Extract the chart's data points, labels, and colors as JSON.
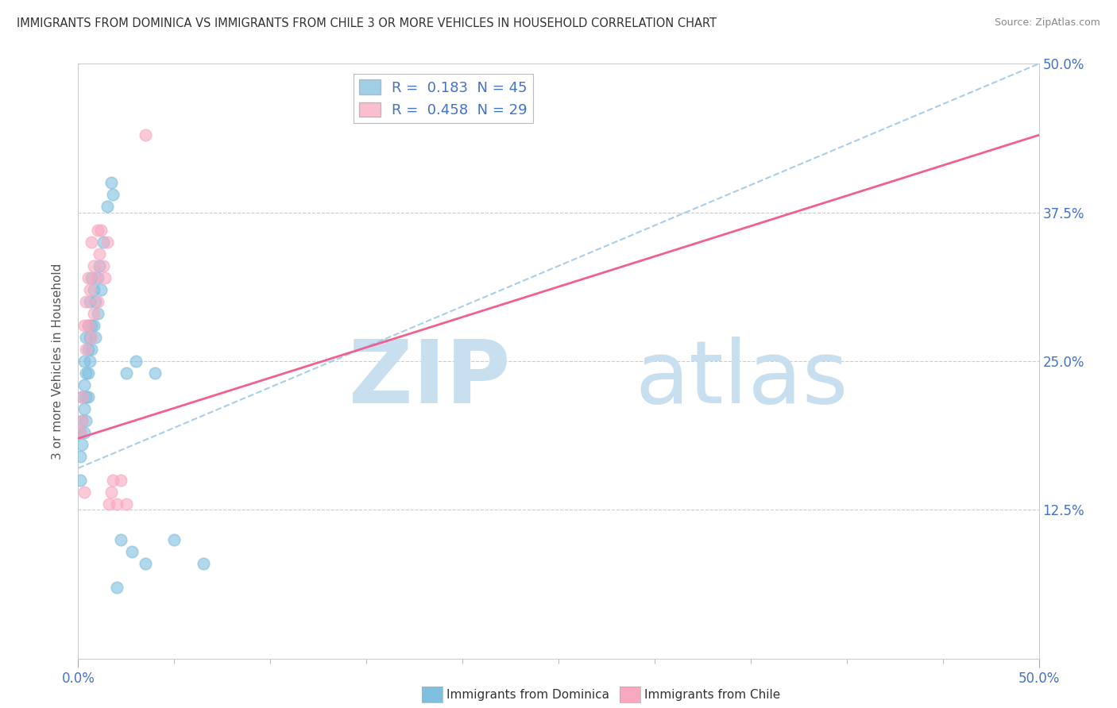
{
  "title": "IMMIGRANTS FROM DOMINICA VS IMMIGRANTS FROM CHILE 3 OR MORE VEHICLES IN HOUSEHOLD CORRELATION CHART",
  "source": "Source: ZipAtlas.com",
  "ylabel_label": "3 or more Vehicles in Household",
  "ytick_values": [
    0.125,
    0.25,
    0.375,
    0.5
  ],
  "ytick_labels": [
    "12.5%",
    "25.0%",
    "37.5%",
    "50.0%"
  ],
  "xtick_minor_values": [
    0.0,
    0.05,
    0.1,
    0.15,
    0.2,
    0.25,
    0.3,
    0.35,
    0.4,
    0.45,
    0.5
  ],
  "dominica_R": 0.183,
  "dominica_N": 45,
  "chile_R": 0.458,
  "chile_N": 29,
  "dominica_color": "#7fbfdf",
  "chile_color": "#f9a8c0",
  "dominica_line_color": "#7fbfdf",
  "chile_line_color": "#f06090",
  "watermark_zip": "ZIP",
  "watermark_atlas": "atlas",
  "watermark_color": "#c8dff0",
  "legend_label_dominica": "Immigrants from Dominica",
  "legend_label_chile": "Immigrants from Chile",
  "dominica_x": [
    0.001,
    0.001,
    0.001,
    0.002,
    0.002,
    0.002,
    0.003,
    0.003,
    0.003,
    0.003,
    0.004,
    0.004,
    0.004,
    0.004,
    0.005,
    0.005,
    0.005,
    0.005,
    0.006,
    0.006,
    0.006,
    0.007,
    0.007,
    0.007,
    0.008,
    0.008,
    0.009,
    0.009,
    0.01,
    0.01,
    0.011,
    0.012,
    0.013,
    0.015,
    0.017,
    0.018,
    0.02,
    0.022,
    0.025,
    0.028,
    0.03,
    0.035,
    0.04,
    0.05,
    0.065
  ],
  "dominica_y": [
    0.19,
    0.17,
    0.15,
    0.22,
    0.2,
    0.18,
    0.25,
    0.23,
    0.21,
    0.19,
    0.27,
    0.24,
    0.22,
    0.2,
    0.28,
    0.26,
    0.24,
    0.22,
    0.3,
    0.27,
    0.25,
    0.32,
    0.28,
    0.26,
    0.31,
    0.28,
    0.3,
    0.27,
    0.32,
    0.29,
    0.33,
    0.31,
    0.35,
    0.38,
    0.4,
    0.39,
    0.06,
    0.1,
    0.24,
    0.09,
    0.25,
    0.08,
    0.24,
    0.1,
    0.08
  ],
  "chile_x": [
    0.001,
    0.002,
    0.002,
    0.003,
    0.003,
    0.004,
    0.004,
    0.005,
    0.005,
    0.006,
    0.007,
    0.007,
    0.008,
    0.008,
    0.009,
    0.01,
    0.01,
    0.011,
    0.012,
    0.013,
    0.014,
    0.015,
    0.016,
    0.017,
    0.018,
    0.02,
    0.022,
    0.025,
    0.035
  ],
  "chile_y": [
    0.19,
    0.22,
    0.2,
    0.28,
    0.14,
    0.3,
    0.26,
    0.32,
    0.28,
    0.31,
    0.35,
    0.27,
    0.33,
    0.29,
    0.32,
    0.36,
    0.3,
    0.34,
    0.36,
    0.33,
    0.32,
    0.35,
    0.13,
    0.14,
    0.15,
    0.13,
    0.15,
    0.13,
    0.44
  ],
  "xlim": [
    0.0,
    0.5
  ],
  "ylim": [
    0.0,
    0.5
  ],
  "background_color": "#ffffff"
}
